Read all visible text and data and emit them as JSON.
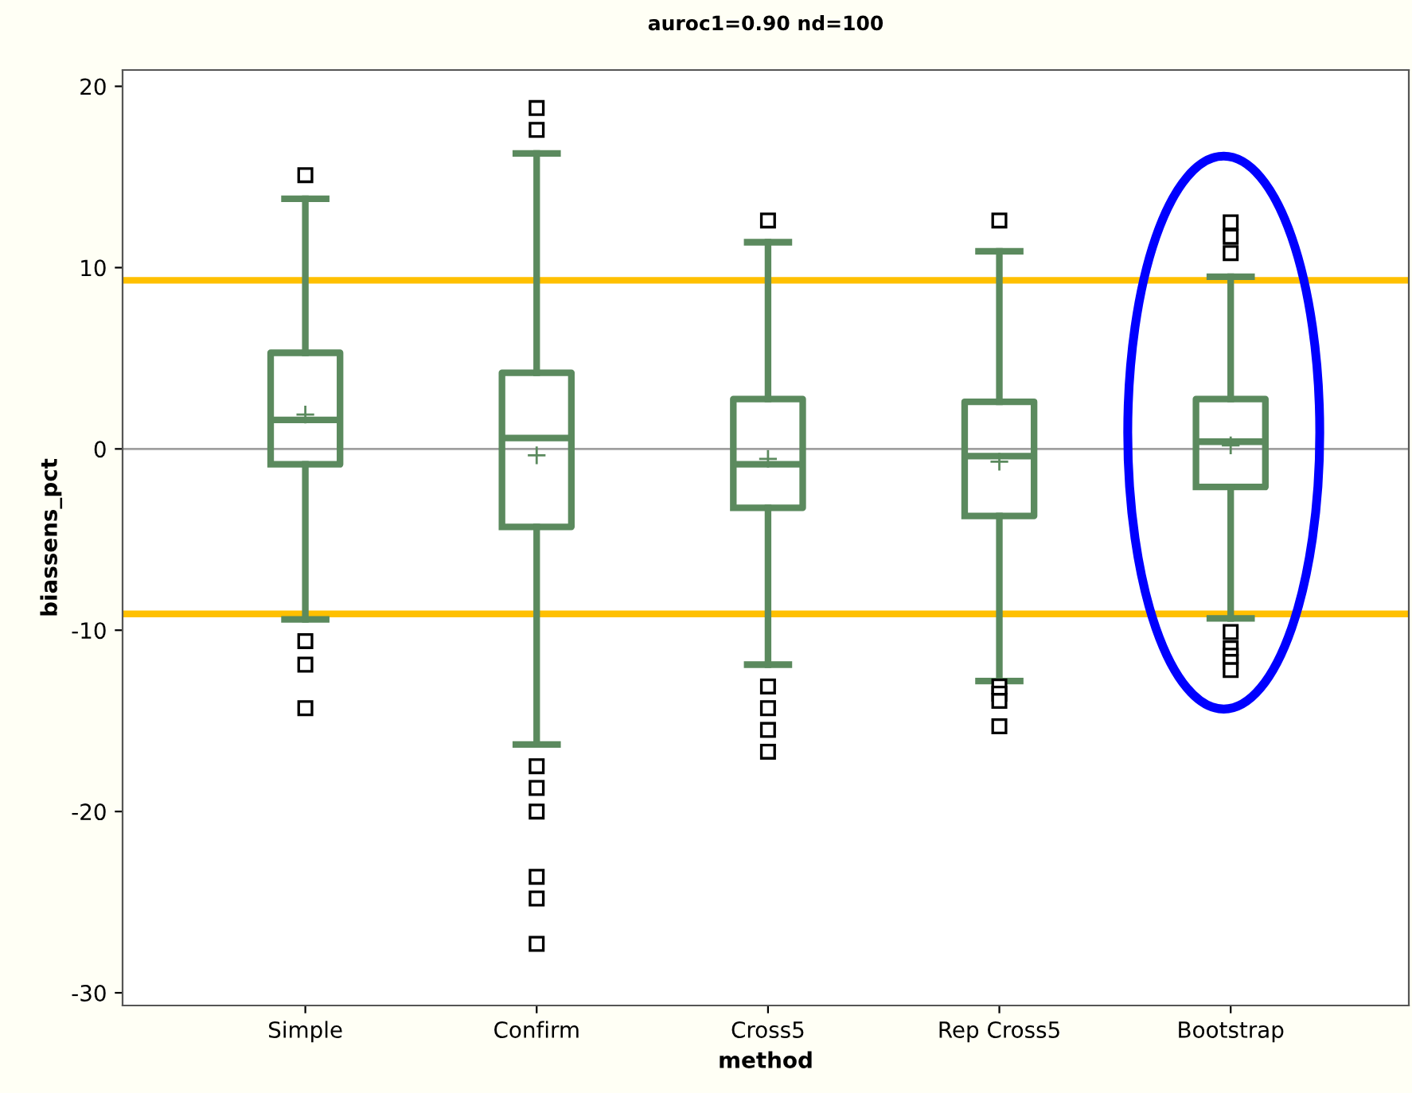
{
  "chart_data": {
    "type": "box",
    "title": "auroc1=0.90 nd=100",
    "xlabel": "method",
    "ylabel": "biassens_pct",
    "categories": [
      "Simple",
      "Confirm",
      "Cross5",
      "Rep Cross5",
      "Bootstrap"
    ],
    "color": "#5b8a5e",
    "marker": "square",
    "boxes": [
      {
        "low": -9.4,
        "q1": -0.85,
        "median": 1.6,
        "q3": 5.3,
        "high": 13.8,
        "mean": 1.9,
        "outliers": [
          15.1,
          -10.6,
          -11.9,
          -14.3
        ]
      },
      {
        "low": -16.3,
        "q1": -4.3,
        "median": 0.6,
        "q3": 4.2,
        "high": 16.3,
        "mean": -0.35,
        "outliers": [
          17.6,
          18.8,
          -17.5,
          -18.7,
          -20.0,
          -23.6,
          -24.8,
          -27.3
        ]
      },
      {
        "low": -11.9,
        "q1": -3.25,
        "median": -0.85,
        "q3": 2.75,
        "high": 11.4,
        "mean": -0.55,
        "outliers": [
          12.6,
          -13.1,
          -14.3,
          -15.5,
          -16.7
        ]
      },
      {
        "low": -12.8,
        "q1": -3.7,
        "median": -0.4,
        "q3": 2.6,
        "high": 10.9,
        "mean": -0.7,
        "outliers": [
          12.6,
          -13.1,
          -13.5,
          -13.9,
          -15.3
        ]
      },
      {
        "low": -9.35,
        "q1": -2.1,
        "median": 0.4,
        "q3": 2.75,
        "high": 9.5,
        "mean": 0.2,
        "outliers": [
          12.5,
          11.7,
          10.8,
          -10.1,
          -11.0,
          -11.4,
          -11.75,
          -12.2
        ]
      }
    ],
    "ylim": [
      -30.7,
      20.9
    ],
    "yticks": [
      -30,
      -20,
      -10,
      0,
      10,
      20
    ],
    "ref_lines": [
      {
        "axis": "y",
        "value": 0,
        "color": "#a0a0a0"
      },
      {
        "axis": "y",
        "value": 9.3,
        "color": "#ffc000"
      },
      {
        "axis": "y",
        "value": -9.1,
        "color": "#ffc000"
      }
    ]
  }
}
